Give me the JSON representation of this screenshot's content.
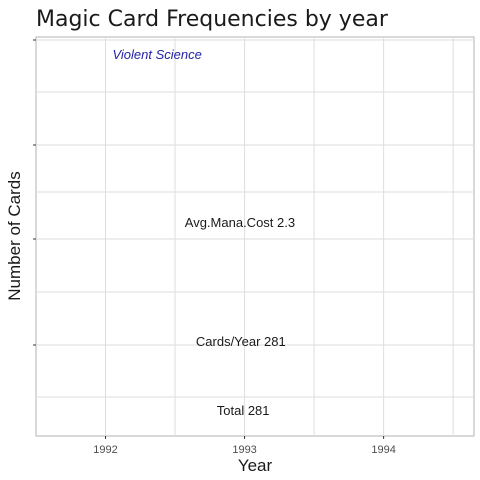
{
  "chart_data": {
    "type": "scatter",
    "title": "Magic Card Frequencies by year",
    "xlabel": "Year",
    "ylabel": "Number of Cards",
    "x_ticks": [
      "1992",
      "1993",
      "1994"
    ],
    "xlim": [
      1991.5,
      1994.65
    ],
    "grid": true,
    "points": [],
    "annotations": [
      {
        "text": "Violent Science",
        "x": 1992.05,
        "style": "italic",
        "color": "#1f1fa8",
        "position": "top-left"
      },
      {
        "text": "Avg.Mana.Cost 2.3",
        "x": 1992.57
      },
      {
        "text": "Cards/Year 281",
        "x": 1992.65
      },
      {
        "text": "Total 281",
        "x": 1992.8
      }
    ]
  },
  "colors": {
    "panel_border": "#b3b3b3",
    "grid": "#dedede",
    "text": "#1a1a1a",
    "axis_text": "#4d4d4d",
    "watermark": "#1f1fa8"
  }
}
